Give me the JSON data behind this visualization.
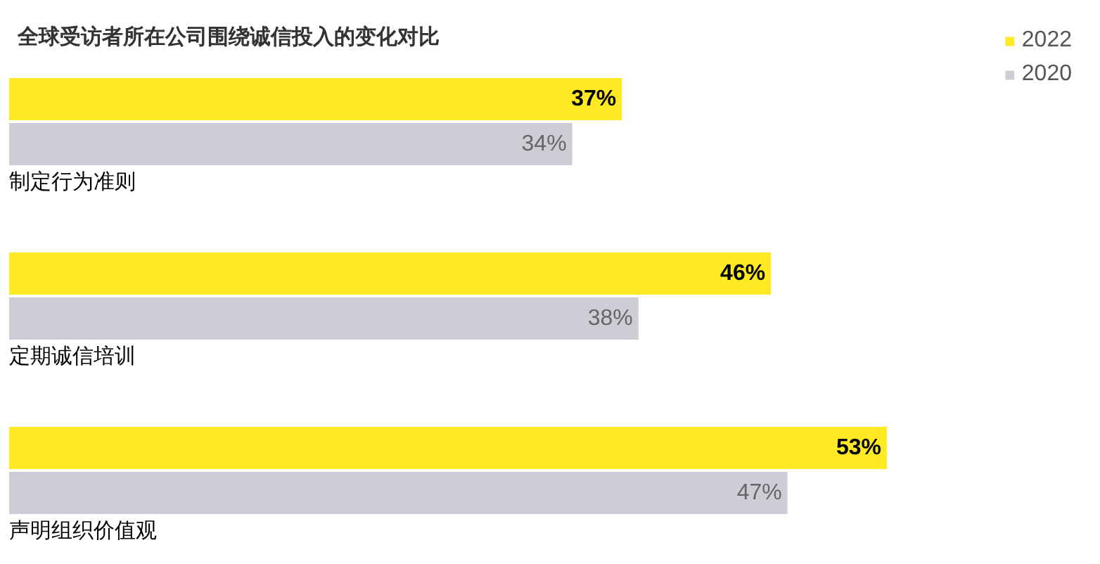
{
  "chart_data": {
    "type": "bar",
    "orientation": "horizontal",
    "title": "全球受访者所在公司围绕诚信投入的变化对比",
    "categories": [
      "制定行为准则",
      "定期诚信培训",
      "声明组织价值观"
    ],
    "series": [
      {
        "name": "2022",
        "color": "#ffe923",
        "values": [
          37,
          46,
          53
        ],
        "value_labels": [
          "37%",
          "46%",
          "53%"
        ]
      },
      {
        "name": "2020",
        "color": "#cdcdd6",
        "values": [
          34,
          38,
          47
        ],
        "value_labels": [
          "34%",
          "38%",
          "47%"
        ]
      }
    ],
    "legend": "top right",
    "grid": false
  }
}
